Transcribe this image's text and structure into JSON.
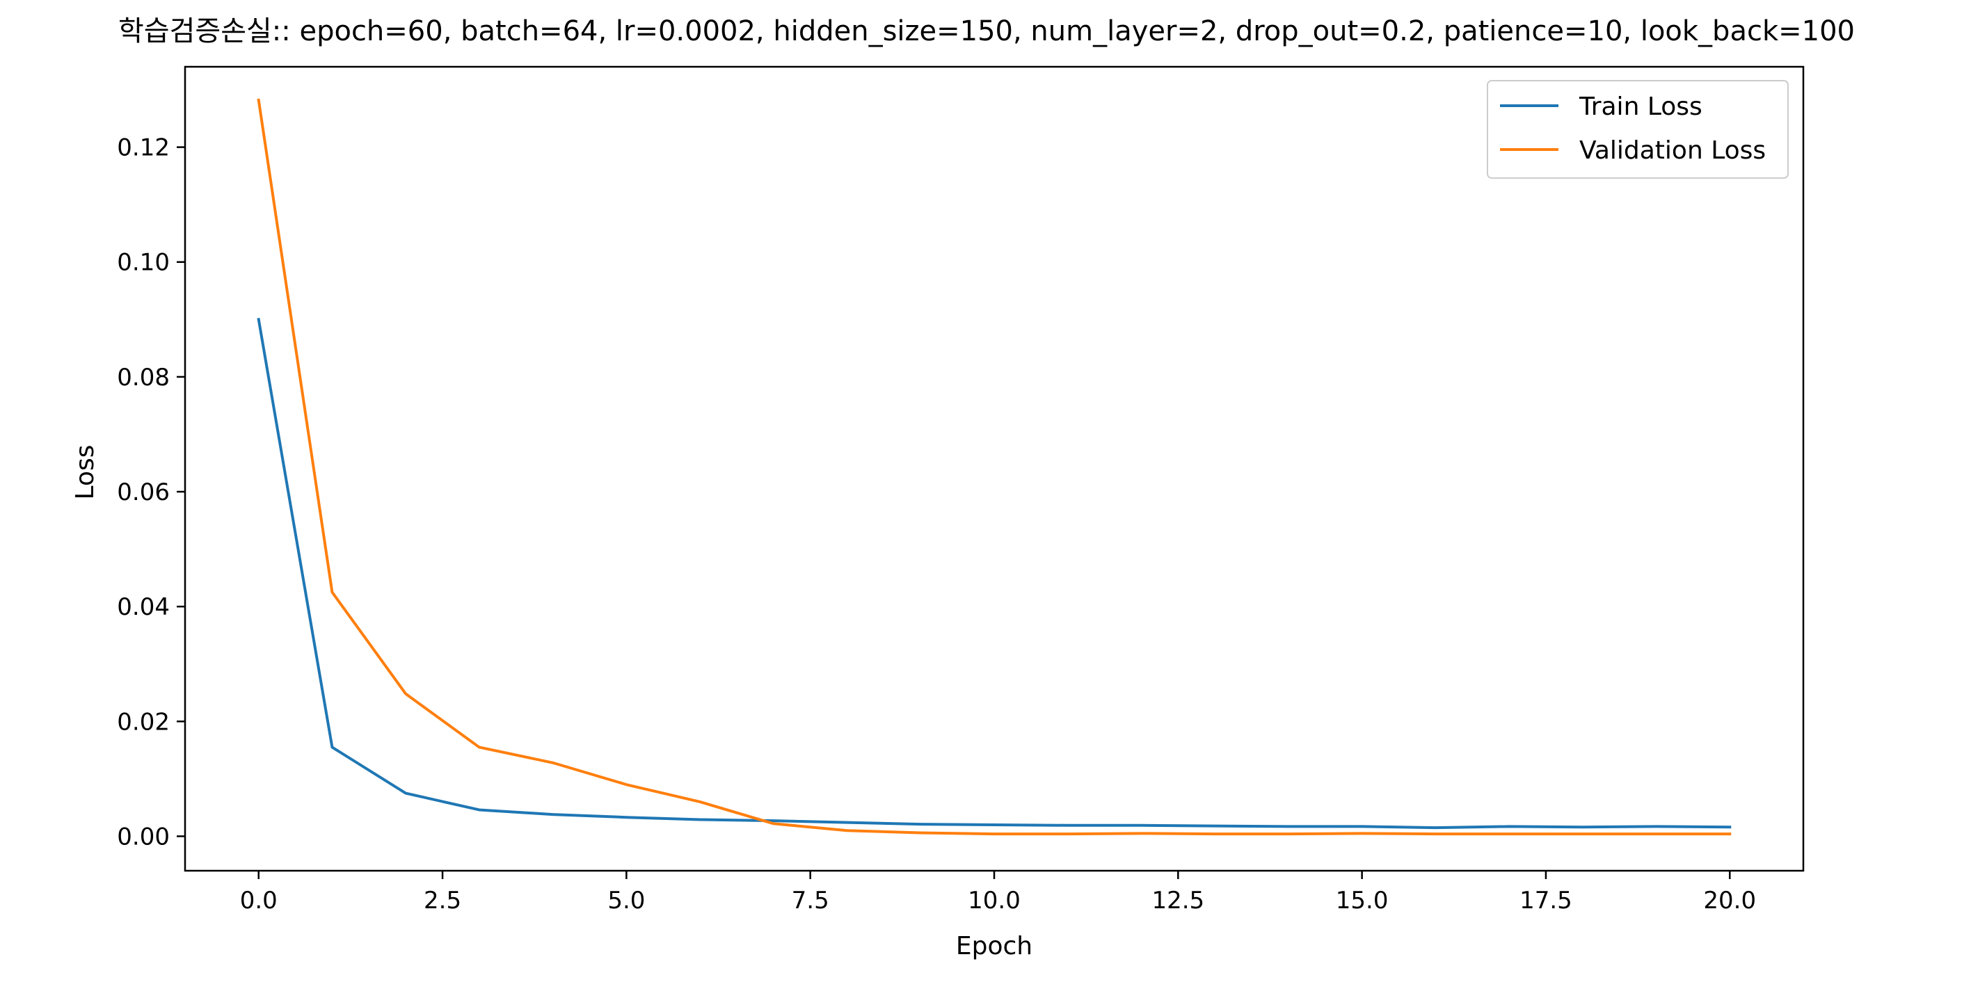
{
  "chart_data": {
    "type": "line",
    "title": "학습검증손실:: epoch=60, batch=64, lr=0.0002, hidden_size=150, num_layer=2, drop_out=0.2, patience=10, look_back=100",
    "xlabel": "Epoch",
    "ylabel": "Loss",
    "xlim": [
      -1.0,
      21.0
    ],
    "ylim": [
      -0.006,
      0.134
    ],
    "xticks": [
      0.0,
      2.5,
      5.0,
      7.5,
      10.0,
      12.5,
      15.0,
      17.5,
      20.0
    ],
    "xtick_labels": [
      "0.0",
      "2.5",
      "5.0",
      "7.5",
      "10.0",
      "12.5",
      "15.0",
      "17.5",
      "20.0"
    ],
    "yticks": [
      0.0,
      0.02,
      0.04,
      0.06,
      0.08,
      0.1,
      0.12
    ],
    "ytick_labels": [
      "0.00",
      "0.02",
      "0.04",
      "0.06",
      "0.08",
      "0.10",
      "0.12"
    ],
    "grid": false,
    "legend_position": "top-right",
    "x": [
      0,
      1,
      2,
      3,
      4,
      5,
      6,
      7,
      8,
      9,
      10,
      11,
      12,
      13,
      14,
      15,
      16,
      17,
      18,
      19,
      20
    ],
    "series": [
      {
        "name": "Train Loss",
        "color": "#1f77b4",
        "values": [
          0.09,
          0.0155,
          0.0075,
          0.0046,
          0.0038,
          0.0033,
          0.0029,
          0.0027,
          0.0024,
          0.0021,
          0.002,
          0.0019,
          0.0019,
          0.0018,
          0.0017,
          0.0017,
          0.0015,
          0.0017,
          0.0016,
          0.0017,
          0.0016
        ]
      },
      {
        "name": "Validation Loss",
        "color": "#ff7f0e",
        "values": [
          0.1282,
          0.0425,
          0.0248,
          0.0155,
          0.0128,
          0.009,
          0.006,
          0.0022,
          0.001,
          0.0006,
          0.0004,
          0.0004,
          0.0005,
          0.0004,
          0.0004,
          0.0005,
          0.0004,
          0.0004,
          0.0004,
          0.0004,
          0.0004
        ]
      }
    ]
  }
}
